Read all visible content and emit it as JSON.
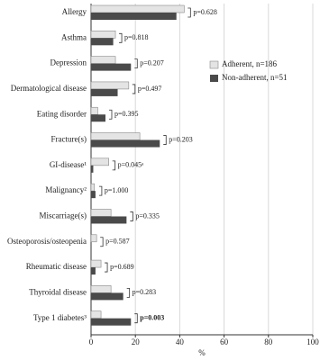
{
  "chart_data": {
    "type": "bar",
    "orientation": "horizontal",
    "categories": [
      "Allergy",
      "Asthma",
      "Depression",
      "Dermatological disease",
      "Eating disorder",
      "Fracture(s)",
      "GI-disease¹",
      "Malignancy²",
      "Miscarriage(s)",
      "Osteoporosis/osteopenia",
      "Rheumatic disease",
      "Thyroidal disease",
      "Type 1 diabetes³"
    ],
    "series": [
      {
        "name": "Adherent, n=186",
        "color": "#e4e4e4",
        "values": [
          42,
          11,
          11,
          17,
          3,
          22,
          8,
          1.5,
          9,
          2.5,
          4.5,
          9,
          4.5
        ]
      },
      {
        "name": "Non-adherent, n=51",
        "color": "#4a4a4a",
        "values": [
          38.5,
          10,
          18,
          12,
          6.5,
          31,
          1,
          2,
          16,
          0,
          2,
          14.5,
          18
        ]
      }
    ],
    "annotations": [
      "p=0.628",
      "p=0.818",
      "p=0.207",
      "p=0.497",
      "p=0.395",
      "p=0.203",
      "p=0.045ᵃ",
      "p=1.000",
      "p=0.335",
      "p=0.587",
      "p=0.689",
      "p=0.283",
      "p=0.003"
    ],
    "xlabel": "%",
    "xlim": [
      0,
      100
    ],
    "xticks": [
      0,
      20,
      40,
      60,
      80,
      100
    ],
    "grid": true,
    "legend": "right"
  }
}
